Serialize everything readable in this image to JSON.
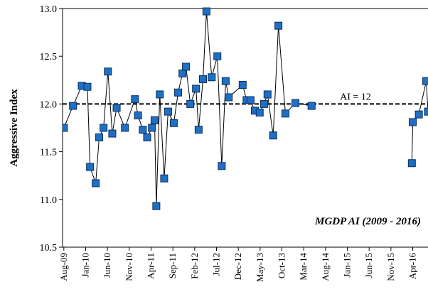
{
  "chart_data": {
    "type": "line",
    "y_label": "Aggressive Index",
    "annotation": "MGDP AI (2009 - 2016)",
    "reference_line": {
      "value": 12,
      "label": "AI = 12"
    },
    "x": [
      0,
      2.1,
      4.1,
      5.4,
      6.0,
      7.3,
      8.1,
      9.1,
      10.1,
      11.1,
      12.1,
      14.0,
      16.3,
      17.0,
      18.1,
      19.1,
      20.2,
      20.8,
      21.2,
      22.0,
      23.0,
      23.9,
      25.2,
      26.2,
      27.2,
      28.0,
      29.0,
      30.3,
      30.9,
      31.9,
      32.7,
      33.9,
      35.2,
      36.2,
      37.1,
      37.8,
      41.0,
      41.9,
      42.8,
      43.8,
      44.9,
      45.9,
      46.7,
      48.0,
      49.2,
      50.8,
      53.1,
      56.8,
      70,
      79.8,
      80.0,
      81.4,
      83.1,
      83.5
    ],
    "series": [
      {
        "name": "MGDP AI",
        "color": "#1f6fc5",
        "values": [
          11.75,
          11.98,
          12.19,
          12.18,
          11.34,
          11.17,
          11.65,
          11.75,
          12.34,
          11.69,
          11.96,
          11.75,
          12.05,
          11.88,
          11.73,
          11.65,
          11.75,
          11.83,
          10.93,
          12.1,
          11.22,
          11.92,
          11.8,
          12.12,
          12.32,
          12.39,
          12.0,
          12.16,
          11.73,
          12.26,
          12.97,
          12.28,
          12.5,
          11.35,
          12.24,
          12.07,
          12.2,
          12.04,
          12.04,
          11.93,
          11.91,
          12.0,
          12.1,
          11.67,
          12.82,
          11.9,
          12.01,
          11.98,
          null,
          11.38,
          11.81,
          11.89,
          12.24,
          11.92
        ]
      }
    ],
    "xlim": [
      -0.3,
      83.5
    ],
    "xticks": [
      {
        "value": 0,
        "label": "Aug-09"
      },
      {
        "value": 5,
        "label": "Jan-10"
      },
      {
        "value": 10,
        "label": "Jun-10"
      },
      {
        "value": 15,
        "label": "Nov-10"
      },
      {
        "value": 20,
        "label": "Apr-11"
      },
      {
        "value": 25,
        "label": "Sep-11"
      },
      {
        "value": 30,
        "label": "Feb-12"
      },
      {
        "value": 35,
        "label": "Jul-12"
      },
      {
        "value": 40,
        "label": "Dec-12"
      },
      {
        "value": 45,
        "label": "May-13"
      },
      {
        "value": 50,
        "label": "Oct-13"
      },
      {
        "value": 55,
        "label": "Mar-14"
      },
      {
        "value": 60,
        "label": "Aug-14"
      },
      {
        "value": 65,
        "label": "Jan-15"
      },
      {
        "value": 70,
        "label": "Jun-15"
      },
      {
        "value": 75,
        "label": "Nov-15"
      },
      {
        "value": 80,
        "label": "Apr-16"
      }
    ],
    "ylim": [
      10.5,
      13
    ],
    "yticks": [
      {
        "value": 10.5,
        "label": "10.5"
      },
      {
        "value": 11,
        "label": "11.0"
      },
      {
        "value": 11.5,
        "label": "11.5"
      },
      {
        "value": 12,
        "label": "12.0"
      },
      {
        "value": 12.5,
        "label": "12.5"
      },
      {
        "value": 13,
        "label": "13.0"
      }
    ]
  }
}
